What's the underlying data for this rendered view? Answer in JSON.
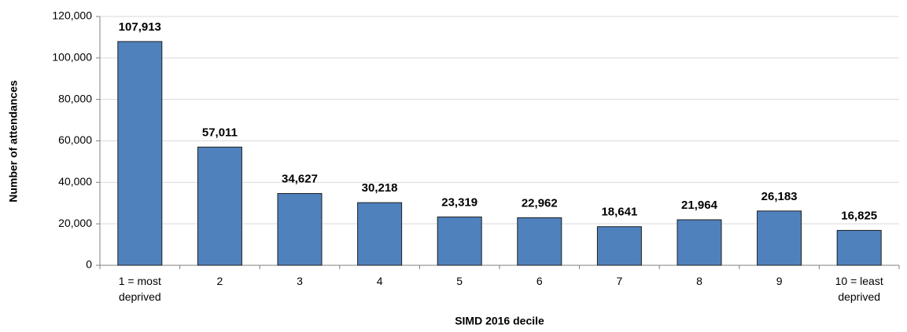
{
  "chart_data": {
    "type": "bar",
    "x_label": "SIMD 2016 decile",
    "y_label": "Number of attendances",
    "categories": [
      "1 = most deprived",
      "2",
      "3",
      "4",
      "5",
      "6",
      "7",
      "8",
      "9",
      "10 = least deprived"
    ],
    "values": [
      107913,
      57011,
      34627,
      30218,
      23319,
      22962,
      18641,
      21964,
      26183,
      16825
    ],
    "value_labels": [
      "107,913",
      "57,011",
      "34,627",
      "30,218",
      "23,319",
      "22,962",
      "18,641",
      "21,964",
      "26,183",
      "16,825"
    ],
    "color": "#4f81bd",
    "ylim": [
      0,
      120000
    ],
    "yticks": [
      0,
      {
        "value": 20000,
        "label": "20,000"
      },
      {
        "value": 40000,
        "label": "40,000"
      },
      {
        "value": 60000,
        "label": "60,000"
      },
      {
        "value": 80000,
        "label": "80,000"
      },
      {
        "value": 100000,
        "label": "100,000"
      },
      {
        "value": 120000,
        "label": "120,000"
      }
    ],
    "grid": true
  }
}
